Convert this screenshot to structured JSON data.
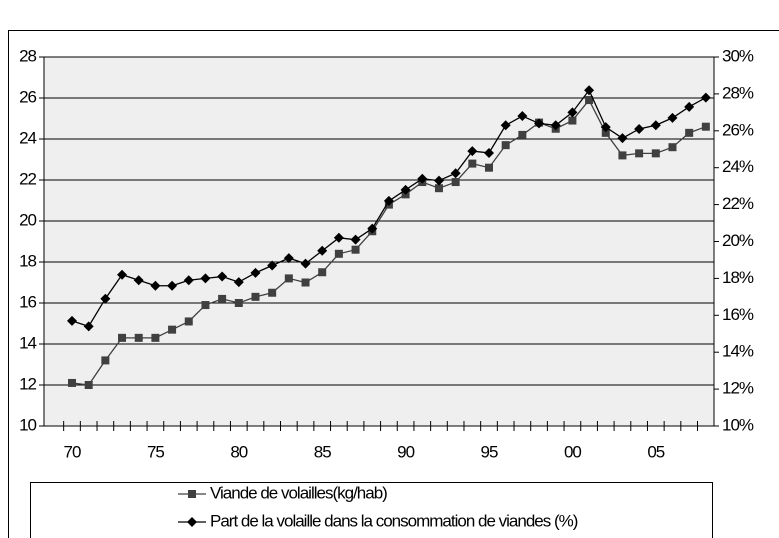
{
  "chart_data": {
    "type": "line",
    "categories": [
      "70",
      null,
      null,
      null,
      null,
      "75",
      null,
      null,
      null,
      null,
      "80",
      null,
      null,
      null,
      null,
      "85",
      null,
      null,
      null,
      null,
      "90",
      null,
      null,
      null,
      null,
      "95",
      null,
      null,
      null,
      null,
      "00",
      null,
      null,
      null,
      null,
      "05",
      null,
      null,
      null
    ],
    "series": [
      {
        "name": "Viande de volailles(kg/hab)",
        "color": "#404040",
        "marker": "square",
        "values": [
          12.1,
          12.0,
          13.2,
          14.3,
          14.3,
          14.3,
          14.7,
          15.1,
          15.9,
          16.2,
          16.0,
          16.3,
          16.5,
          17.2,
          17.0,
          17.5,
          18.4,
          18.6,
          19.5,
          20.8,
          21.3,
          21.9,
          21.6,
          21.9,
          22.8,
          22.6,
          23.7,
          24.2,
          24.8,
          24.5,
          24.9,
          25.9,
          24.3,
          23.2,
          23.3,
          23.3,
          23.6,
          24.3,
          24.6
        ]
      },
      {
        "name": "Part de la volaille dans la consommation de viandes (%)",
        "color": "#000000",
        "marker": "diamond",
        "axis": "y2",
        "values": [
          15.7,
          15.4,
          16.9,
          18.2,
          17.9,
          17.6,
          17.6,
          17.9,
          18.0,
          18.1,
          17.8,
          18.3,
          18.7,
          19.1,
          18.8,
          19.5,
          20.2,
          20.1,
          20.7,
          22.2,
          22.8,
          23.4,
          23.3,
          23.7,
          24.9,
          24.8,
          26.3,
          26.8,
          26.4,
          26.3,
          27.0,
          28.2,
          26.2,
          25.6,
          26.1,
          26.3,
          26.7,
          27.3,
          27.8
        ]
      }
    ],
    "ylim": [
      10,
      28
    ],
    "yticks": [
      10,
      12,
      14,
      16,
      18,
      20,
      22,
      24,
      26,
      28
    ],
    "y2lim": [
      10,
      30
    ],
    "y2ticks": [
      {
        "value": 10,
        "label": "10%"
      },
      {
        "value": 12,
        "label": "12%"
      },
      {
        "value": 14,
        "label": "14%"
      },
      {
        "value": 16,
        "label": "16%"
      },
      {
        "value": 18,
        "label": "18%"
      },
      {
        "value": 20,
        "label": "20%"
      },
      {
        "value": 22,
        "label": "22%"
      },
      {
        "value": 24,
        "label": "24%"
      },
      {
        "value": 26,
        "label": "26%"
      },
      {
        "value": 28,
        "label": "28%"
      },
      {
        "value": 30,
        "label": "30%"
      }
    ],
    "grid": true,
    "legend": "bottom"
  }
}
